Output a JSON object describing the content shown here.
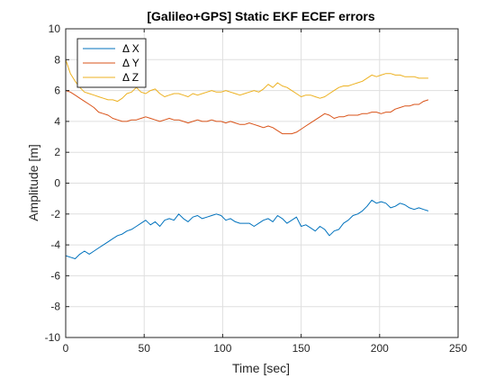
{
  "chart_data": {
    "type": "line",
    "title": "[Galileo+GPS] Static EKF ECEF errors",
    "xlabel": "Time [sec]",
    "ylabel": "Amplitude [m]",
    "xlim": [
      0,
      250
    ],
    "ylim": [
      -10,
      10
    ],
    "xticks": [
      0,
      50,
      100,
      150,
      200,
      250
    ],
    "yticks": [
      -10,
      -8,
      -6,
      -4,
      -2,
      0,
      2,
      4,
      6,
      8,
      10
    ],
    "grid": true,
    "legend_position": "top-left",
    "series": [
      {
        "name": "Δ X",
        "color": "#0072BD",
        "x": [
          0,
          3,
          6,
          9,
          12,
          15,
          18,
          21,
          24,
          27,
          30,
          33,
          36,
          39,
          42,
          45,
          48,
          51,
          54,
          57,
          60,
          63,
          66,
          69,
          72,
          75,
          78,
          81,
          84,
          87,
          90,
          93,
          96,
          99,
          102,
          105,
          108,
          111,
          114,
          117,
          120,
          123,
          126,
          129,
          132,
          135,
          138,
          141,
          144,
          147,
          150,
          153,
          156,
          159,
          162,
          165,
          168,
          171,
          174,
          177,
          180,
          183,
          186,
          189,
          192,
          195,
          198,
          201,
          204,
          207,
          210,
          213,
          216,
          219,
          222,
          225,
          228,
          231
        ],
        "y": [
          -4.7,
          -4.8,
          -4.9,
          -4.6,
          -4.4,
          -4.6,
          -4.4,
          -4.2,
          -4.0,
          -3.8,
          -3.6,
          -3.4,
          -3.3,
          -3.1,
          -3.0,
          -2.8,
          -2.6,
          -2.4,
          -2.7,
          -2.5,
          -2.8,
          -2.4,
          -2.3,
          -2.4,
          -2.0,
          -2.3,
          -2.5,
          -2.2,
          -2.1,
          -2.3,
          -2.2,
          -2.1,
          -2.0,
          -2.1,
          -2.4,
          -2.3,
          -2.5,
          -2.6,
          -2.6,
          -2.6,
          -2.8,
          -2.6,
          -2.4,
          -2.3,
          -2.5,
          -2.1,
          -2.3,
          -2.6,
          -2.4,
          -2.2,
          -2.8,
          -2.7,
          -2.9,
          -3.1,
          -2.8,
          -3.0,
          -3.4,
          -3.1,
          -3.0,
          -2.6,
          -2.4,
          -2.1,
          -2.0,
          -1.8,
          -1.5,
          -1.1,
          -1.3,
          -1.2,
          -1.3,
          -1.6,
          -1.5,
          -1.3,
          -1.4,
          -1.6,
          -1.7,
          -1.6,
          -1.7,
          -1.8
        ]
      },
      {
        "name": "Δ Y",
        "color": "#D95319",
        "x": [
          0,
          3,
          6,
          9,
          12,
          15,
          18,
          21,
          24,
          27,
          30,
          33,
          36,
          39,
          42,
          45,
          48,
          51,
          54,
          57,
          60,
          63,
          66,
          69,
          72,
          75,
          78,
          81,
          84,
          87,
          90,
          93,
          96,
          99,
          102,
          105,
          108,
          111,
          114,
          117,
          120,
          123,
          126,
          129,
          132,
          135,
          138,
          141,
          144,
          147,
          150,
          153,
          156,
          159,
          162,
          165,
          168,
          171,
          174,
          177,
          180,
          183,
          186,
          189,
          192,
          195,
          198,
          201,
          204,
          207,
          210,
          213,
          216,
          219,
          222,
          225,
          228,
          231
        ],
        "y": [
          6.0,
          5.9,
          5.7,
          5.5,
          5.3,
          5.1,
          4.9,
          4.6,
          4.5,
          4.4,
          4.2,
          4.1,
          4.0,
          4.0,
          4.1,
          4.1,
          4.2,
          4.3,
          4.2,
          4.1,
          4.0,
          4.1,
          4.2,
          4.1,
          4.1,
          4.0,
          3.9,
          4.0,
          4.1,
          4.0,
          4.0,
          4.1,
          4.0,
          4.0,
          3.9,
          4.0,
          3.9,
          3.8,
          3.8,
          3.9,
          3.8,
          3.7,
          3.6,
          3.7,
          3.6,
          3.4,
          3.2,
          3.2,
          3.2,
          3.3,
          3.5,
          3.7,
          3.9,
          4.1,
          4.3,
          4.5,
          4.4,
          4.2,
          4.3,
          4.3,
          4.4,
          4.4,
          4.4,
          4.5,
          4.5,
          4.6,
          4.6,
          4.5,
          4.6,
          4.6,
          4.8,
          4.9,
          5.0,
          5.0,
          5.1,
          5.1,
          5.3,
          5.4
        ]
      },
      {
        "name": "Δ Z",
        "color": "#EDB120",
        "x": [
          0,
          3,
          6,
          9,
          12,
          15,
          18,
          21,
          24,
          27,
          30,
          33,
          36,
          39,
          42,
          45,
          48,
          51,
          54,
          57,
          60,
          63,
          66,
          69,
          72,
          75,
          78,
          81,
          84,
          87,
          90,
          93,
          96,
          99,
          102,
          105,
          108,
          111,
          114,
          117,
          120,
          123,
          126,
          129,
          132,
          135,
          138,
          141,
          144,
          147,
          150,
          153,
          156,
          159,
          162,
          165,
          168,
          171,
          174,
          177,
          180,
          183,
          186,
          189,
          192,
          195,
          198,
          201,
          204,
          207,
          210,
          213,
          216,
          219,
          222,
          225,
          228,
          231
        ],
        "y": [
          8.0,
          7.1,
          6.6,
          6.2,
          5.9,
          5.8,
          5.7,
          5.6,
          5.5,
          5.4,
          5.4,
          5.3,
          5.5,
          5.8,
          5.9,
          6.2,
          5.9,
          5.8,
          6.0,
          6.1,
          5.8,
          5.6,
          5.7,
          5.8,
          5.8,
          5.7,
          5.6,
          5.8,
          5.7,
          5.8,
          5.9,
          6.0,
          5.9,
          5.9,
          6.0,
          5.9,
          5.8,
          5.7,
          5.8,
          5.9,
          6.0,
          5.9,
          6.1,
          6.4,
          6.2,
          6.5,
          6.3,
          6.2,
          6.0,
          5.8,
          5.6,
          5.7,
          5.7,
          5.6,
          5.5,
          5.6,
          5.8,
          6.0,
          6.2,
          6.3,
          6.3,
          6.4,
          6.5,
          6.6,
          6.8,
          7.0,
          6.9,
          7.0,
          7.1,
          7.1,
          7.0,
          7.0,
          6.9,
          6.9,
          6.9,
          6.8,
          6.8,
          6.8
        ]
      }
    ]
  }
}
